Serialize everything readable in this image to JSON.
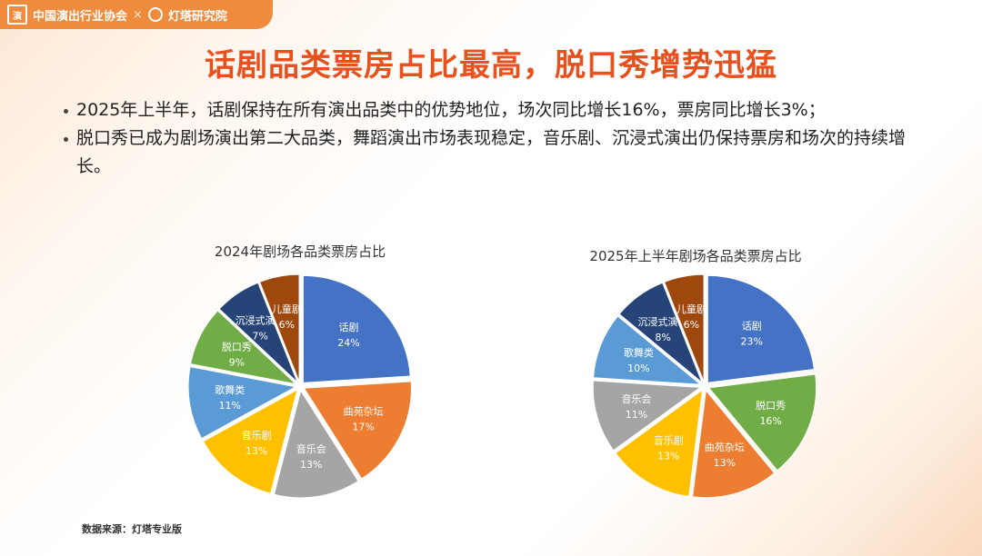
{
  "header": {
    "logo_left": "中国演出行业协会",
    "logo_sep": "×",
    "logo_right": "灯塔研究院"
  },
  "title": "话剧品类票房占比最高，脱口秀增势迅猛",
  "bullets": [
    "2025年上半年，话剧保持在所有演出品类中的优势地位，场次同比增长16%，票房同比增长3%；",
    "脱口秀已成为剧场演出第二大品类，舞蹈演出市场表现稳定，音乐剧、沉浸式演出仍保持票房和场次的持续增长。"
  ],
  "source": "数据来源：灯塔专业版",
  "chart_data": [
    {
      "type": "pie",
      "title": "2024年剧场各品类票房占比",
      "unit": "%",
      "slices": [
        {
          "label": "话剧",
          "value": 24,
          "color": "#4472c4"
        },
        {
          "label": "曲苑杂坛",
          "value": 17,
          "color": "#ed7d31"
        },
        {
          "label": "音乐会",
          "value": 13,
          "color": "#a5a5a5"
        },
        {
          "label": "音乐剧",
          "value": 13,
          "color": "#ffc000"
        },
        {
          "label": "歌舞类",
          "value": 11,
          "color": "#5b9bd5"
        },
        {
          "label": "脱口秀",
          "value": 9,
          "color": "#70ad47"
        },
        {
          "label": "沉浸式演出",
          "value": 7,
          "color": "#264478"
        },
        {
          "label": "儿童剧",
          "value": 6,
          "color": "#9e480e"
        }
      ]
    },
    {
      "type": "pie",
      "title": "2025年上半年剧场各品类票房占比",
      "unit": "%",
      "slices": [
        {
          "label": "话剧",
          "value": 23,
          "color": "#4472c4"
        },
        {
          "label": "脱口秀",
          "value": 16,
          "color": "#70ad47"
        },
        {
          "label": "曲苑杂坛",
          "value": 13,
          "color": "#ed7d31"
        },
        {
          "label": "音乐剧",
          "value": 13,
          "color": "#ffc000"
        },
        {
          "label": "音乐会",
          "value": 11,
          "color": "#a5a5a5"
        },
        {
          "label": "歌舞类",
          "value": 10,
          "color": "#5b9bd5"
        },
        {
          "label": "沉浸式演出",
          "value": 8,
          "color": "#264478"
        },
        {
          "label": "儿童剧",
          "value": 6,
          "color": "#9e480e"
        }
      ]
    }
  ]
}
